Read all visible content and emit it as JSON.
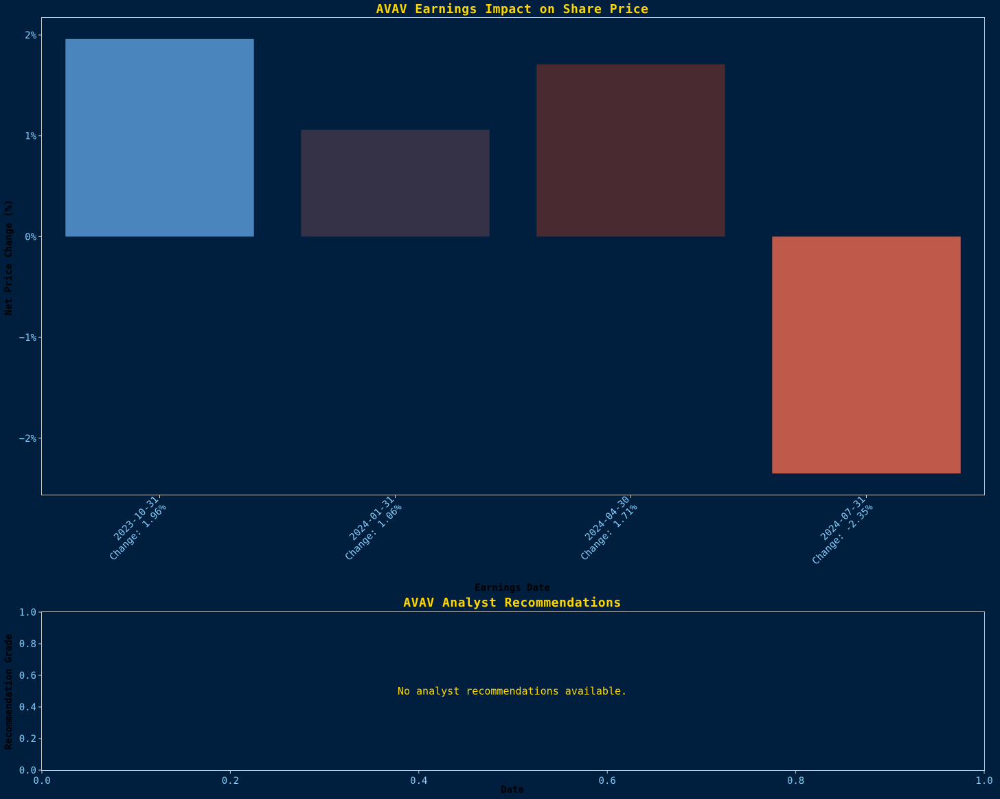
{
  "chart_data": [
    {
      "type": "bar",
      "title": "AVAV Earnings Impact on Share Price",
      "xlabel": "Earnings Date",
      "ylabel": "Net Price Change (%)",
      "categories": [
        "2023-10-31",
        "2024-01-31",
        "2024-04-30",
        "2024-07-31"
      ],
      "tick_labels": [
        [
          "2023-10-31",
          "Change: 1.96%"
        ],
        [
          "2024-01-31",
          "Change: 1.06%"
        ],
        [
          "2024-04-30",
          "Change: 1.71%"
        ],
        [
          "2024-07-31",
          "Change: -2.35%"
        ]
      ],
      "values": [
        1.96,
        1.06,
        1.71,
        -2.35
      ],
      "bar_colors": [
        "#4a86bd",
        "#353247",
        "#482a30",
        "#bf5a4a"
      ],
      "yticks": [
        -2,
        -1,
        0,
        1,
        2
      ],
      "ytick_labels": [
        "−2%",
        "−1%",
        "0%",
        "1%",
        "2%"
      ],
      "ylim": [
        -2.56,
        2.17
      ],
      "grid": false
    },
    {
      "type": "line",
      "title": "AVAV Analyst Recommendations",
      "xlabel": "Date",
      "ylabel": "Recommendation Grade",
      "message": "No analyst recommendations available.",
      "xlim": [
        0,
        1
      ],
      "ylim": [
        0,
        1
      ],
      "xticks": [
        "0.0",
        "0.2",
        "0.4",
        "0.6",
        "0.8",
        "1.0"
      ],
      "yticks": [
        "0.0",
        "0.2",
        "0.4",
        "0.6",
        "0.8",
        "1.0"
      ],
      "grid": false
    }
  ]
}
